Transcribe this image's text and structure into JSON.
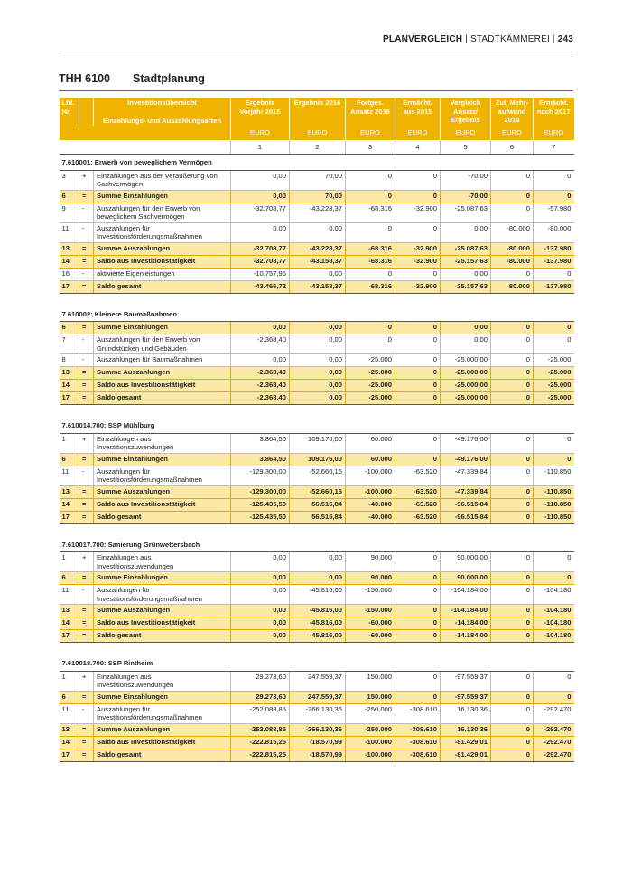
{
  "header": {
    "left": "PLANVERGLEICH",
    "mid": "STADTKÄMMEREI",
    "page": "243"
  },
  "title": {
    "code": "THH 6100",
    "name": "Stadtplanung"
  },
  "table": {
    "head": {
      "nr": "Lfd. Nr.",
      "label": [
        "Investitionsübersicht",
        "Einzahlungs- und Auszahlungsarten"
      ],
      "columns": [
        "Ergebnis Vorjahr 2015",
        "Ergebnis 2016",
        "Fortges. Ansatz 2016",
        "Ermächt. aus 2015",
        "Vergleich Ansatz/ Ergebnis",
        "Zul. Mehr-aufwand 2016",
        "Ermächt. nach 2017"
      ],
      "units": [
        "EURO",
        "EURO",
        "EURO",
        "EURO",
        "EURO",
        "EURO",
        "EURO"
      ],
      "numbers": [
        1,
        2,
        3,
        4,
        5,
        6,
        7
      ]
    },
    "sections": [
      {
        "title": "7.610001: Erwerb von beweglichem Vermögen",
        "rows": [
          [
            "3",
            "+",
            "Einzahlungen aus der Veräußerung von Sachvermögen",
            "0,00",
            "70,00",
            "0",
            "0",
            "-70,00",
            "0",
            "0"
          ],
          [
            "6",
            "=",
            "Summe Einzahlungen",
            "0,00",
            "70,00",
            "0",
            "0",
            "-70,00",
            "0",
            "0"
          ],
          [
            "9",
            "-",
            "Auszahlungen für den Erwerb von beweglichem Sachvermögen",
            "-32.708,77",
            "-43.228,37",
            "-68.316",
            "-32.900",
            "-25.087,63",
            "0",
            "-57.980"
          ],
          [
            "11",
            "-",
            "Auszahlungen für Investitionsförderungsmaßnahmen",
            "0,00",
            "0,00",
            "0",
            "0",
            "0,00",
            "-80.000",
            "-80.000"
          ],
          [
            "13",
            "=",
            "Summe Auszahlungen",
            "-32.708,77",
            "-43.228,37",
            "-68.316",
            "-32.900",
            "-25.087,63",
            "-80.000",
            "-137.980"
          ],
          [
            "14",
            "=",
            "Saldo aus Investitionstätigkeit",
            "-32.708,77",
            "-43.158,37",
            "-68.316",
            "-32.900",
            "-25.157,63",
            "-80.000",
            "-137.980"
          ],
          [
            "16",
            "-",
            "aktivierte Eigenleistungen",
            "-10.757,95",
            "0,00",
            "0",
            "0",
            "0,00",
            "0",
            "0"
          ],
          [
            "17",
            "=",
            "Saldo gesamt",
            "-43.466,72",
            "-43.158,37",
            "-68.316",
            "-32.900",
            "-25.157,63",
            "-80.000",
            "-137.980"
          ]
        ]
      },
      {
        "title": "7.610002: Kleinere Baumaßnahmen",
        "rows": [
          [
            "6",
            "=",
            "Summe Einzahlungen",
            "0,00",
            "0,00",
            "0",
            "0",
            "0,00",
            "0",
            "0"
          ],
          [
            "7",
            "-",
            "Auszahlungen für den Erwerb von Grundstücken und Gebäuden",
            "-2.368,40",
            "0,00",
            "0",
            "0",
            "0,00",
            "0",
            "0"
          ],
          [
            "8",
            "-",
            "Auszahlungen für Baumaßnahmen",
            "0,00",
            "0,00",
            "-25.000",
            "0",
            "-25.000,00",
            "0",
            "-25.000"
          ],
          [
            "13",
            "=",
            "Summe Auszahlungen",
            "-2.368,40",
            "0,00",
            "-25.000",
            "0",
            "-25.000,00",
            "0",
            "-25.000"
          ],
          [
            "14",
            "=",
            "Saldo aus Investitionstätigkeit",
            "-2.368,40",
            "0,00",
            "-25.000",
            "0",
            "-25.000,00",
            "0",
            "-25.000"
          ],
          [
            "17",
            "=",
            "Saldo gesamt",
            "-2.368,40",
            "0,00",
            "-25.000",
            "0",
            "-25.000,00",
            "0",
            "-25.000"
          ]
        ]
      },
      {
        "title": "7.610014.700: SSP Mühlburg",
        "rows": [
          [
            "1",
            "+",
            "Einzahlungen aus Investitionszuwendungen",
            "3.864,50",
            "109.176,00",
            "60.000",
            "0",
            "-49.176,00",
            "0",
            "0"
          ],
          [
            "6",
            "=",
            "Summe Einzahlungen",
            "3.864,50",
            "109.176,00",
            "60.000",
            "0",
            "-49.176,00",
            "0",
            "0"
          ],
          [
            "11",
            "-",
            "Auszahlungen für Investitionsförderungsmaßnahmen",
            "-129.300,00",
            "-52.660,16",
            "-100.000",
            "-63.520",
            "-47.339,84",
            "0",
            "-110.850"
          ],
          [
            "13",
            "=",
            "Summe Auszahlungen",
            "-129.300,00",
            "-52.660,16",
            "-100.000",
            "-63.520",
            "-47.339,84",
            "0",
            "-110.850"
          ],
          [
            "14",
            "=",
            "Saldo aus Investitionstätigkeit",
            "-125.435,50",
            "56.515,84",
            "-40.000",
            "-63.520",
            "-96.515,84",
            "0",
            "-110.850"
          ],
          [
            "17",
            "=",
            "Saldo gesamt",
            "-125.435,50",
            "56.515,84",
            "-40.000",
            "-63.520",
            "-96.515,84",
            "0",
            "-110.850"
          ]
        ]
      },
      {
        "title": "7.610017.700: Sanierung Grünwettersbach",
        "rows": [
          [
            "1",
            "+",
            "Einzahlungen aus Investitionszuwendungen",
            "0,00",
            "0,00",
            "90.000",
            "0",
            "90.000,00",
            "0",
            "0"
          ],
          [
            "6",
            "=",
            "Summe Einzahlungen",
            "0,00",
            "0,00",
            "90.000",
            "0",
            "90.000,00",
            "0",
            "0"
          ],
          [
            "11",
            "-",
            "Auszahlungen für Investitionsförderungsmaßnahmen",
            "0,00",
            "-45.816,00",
            "-150.000",
            "0",
            "-104.184,00",
            "0",
            "-104.180"
          ],
          [
            "13",
            "=",
            "Summe Auszahlungen",
            "0,00",
            "-45.816,00",
            "-150.000",
            "0",
            "-104.184,00",
            "0",
            "-104.180"
          ],
          [
            "14",
            "=",
            "Saldo aus Investitionstätigkeit",
            "0,00",
            "-45.816,00",
            "-60.000",
            "0",
            "-14.184,00",
            "0",
            "-104.180"
          ],
          [
            "17",
            "=",
            "Saldo gesamt",
            "0,00",
            "-45.816,00",
            "-60.000",
            "0",
            "-14.184,00",
            "0",
            "-104.180"
          ]
        ]
      },
      {
        "title": "7.610018.700: SSP Rintheim",
        "rows": [
          [
            "1",
            "+",
            "Einzahlungen aus Investitionszuwendungen",
            "29.273,60",
            "247.559,37",
            "150.000",
            "0",
            "-97.559,37",
            "0",
            "0"
          ],
          [
            "6",
            "=",
            "Summe Einzahlungen",
            "29.273,60",
            "247.559,37",
            "150.000",
            "0",
            "-97.559,37",
            "0",
            "0"
          ],
          [
            "11",
            "-",
            "Auszahlungen für Investitionsförderungsmaßnahmen",
            "-252.088,85",
            "-266.130,36",
            "-250.000",
            "-308.610",
            "16.130,36",
            "0",
            "-292.470"
          ],
          [
            "13",
            "=",
            "Summe Auszahlungen",
            "-252.088,85",
            "-266.130,36",
            "-250.000",
            "-308.610",
            "16.130,36",
            "0",
            "-292.470"
          ],
          [
            "14",
            "=",
            "Saldo aus Investitionstätigkeit",
            "-222.815,25",
            "-18.570,99",
            "-100.000",
            "-308.610",
            "-81.429,01",
            "0",
            "-292.470"
          ],
          [
            "17",
            "=",
            "Saldo gesamt",
            "-222.815,25",
            "-18.570,99",
            "-100.000",
            "-308.610",
            "-81.429,01",
            "0",
            "-292.470"
          ]
        ]
      }
    ]
  }
}
